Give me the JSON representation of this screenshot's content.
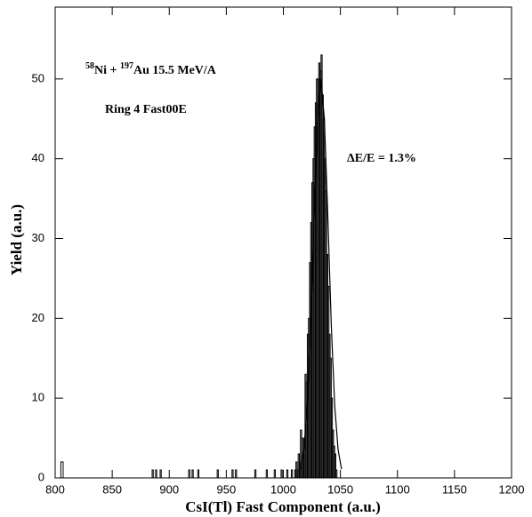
{
  "chart_data": {
    "type": "histogram",
    "xlabel": "CsI(Tl) Fast Component (a.u.)",
    "ylabel": "Yield (a.u.)",
    "annotations": [
      [
        "58",
        "Ni + ",
        "197",
        "Au 15.5 MeV/A"
      ],
      "Ring 4 Fast00E",
      "ΔE/E = 1.3%"
    ],
    "bins": [
      800,
      805,
      807,
      885,
      886,
      888,
      889,
      892,
      893,
      917,
      918,
      920,
      921,
      925,
      926,
      942,
      943,
      955,
      956,
      958,
      959,
      975,
      976,
      985,
      986,
      992,
      993,
      998,
      999,
      1003,
      1004,
      1007,
      1008,
      1010,
      1011,
      1012,
      1013,
      1014,
      1015,
      1016,
      1017,
      1018,
      1019,
      1020,
      1021,
      1022,
      1023,
      1024,
      1025,
      1026,
      1027,
      1028,
      1029,
      1030,
      1031,
      1032,
      1033,
      1034,
      1035,
      1036,
      1037,
      1038,
      1039,
      1040,
      1041,
      1042,
      1043,
      1044,
      1045,
      1046,
      1047,
      1200
    ],
    "values": [
      0,
      2,
      0,
      1,
      0,
      1,
      0,
      1,
      0,
      1,
      0,
      1,
      0,
      1,
      0,
      1,
      0,
      1,
      0,
      1,
      0,
      1,
      0,
      1,
      0,
      1,
      0,
      1,
      0,
      1,
      0,
      1,
      0,
      1,
      2,
      1,
      3,
      2,
      6,
      5,
      3,
      5,
      13,
      12,
      18,
      20,
      27,
      32,
      37,
      40,
      44,
      47,
      50,
      50,
      52,
      51,
      53,
      48,
      45,
      40,
      36,
      28,
      24,
      18,
      15,
      10,
      6,
      4,
      3,
      1,
      0
    ],
    "color": "#000000",
    "fit": {
      "x": [
        1015,
        1018,
        1021,
        1024,
        1027,
        1030,
        1033,
        1036,
        1039,
        1042,
        1045,
        1048,
        1051
      ],
      "values": [
        1.1,
        3.5,
        9.1,
        19.2,
        32.7,
        44.9,
        50,
        44.9,
        32.7,
        19.2,
        9.1,
        3.5,
        1.1
      ]
    },
    "xlim": [
      800,
      1200
    ],
    "ylim": [
      0,
      59
    ],
    "xticks": [
      800,
      850,
      900,
      950,
      1000,
      1050,
      1100,
      1150,
      1200
    ],
    "yticks": [
      0,
      10,
      20,
      30,
      40,
      50
    ]
  }
}
